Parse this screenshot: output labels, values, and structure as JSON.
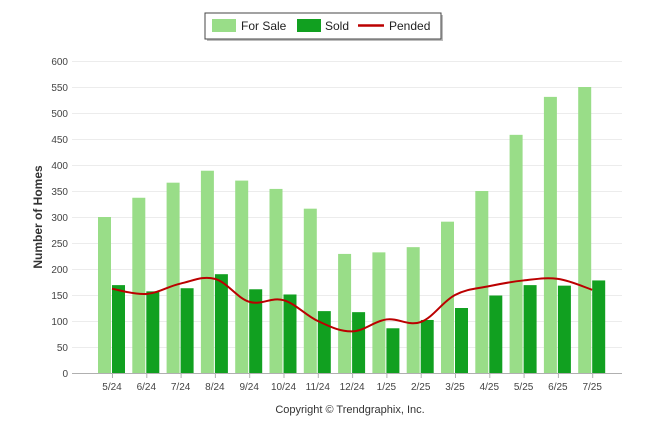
{
  "chart_data": {
    "type": "bar",
    "title": "",
    "ylabel": "Number of Homes",
    "xlabel": "",
    "ylim": [
      0,
      600
    ],
    "yticks": [
      0,
      50,
      100,
      150,
      200,
      250,
      300,
      350,
      400,
      450,
      500,
      550,
      600
    ],
    "categories": [
      "5/24",
      "6/24",
      "7/24",
      "8/24",
      "9/24",
      "10/24",
      "11/24",
      "12/24",
      "1/25",
      "2/25",
      "3/25",
      "4/25",
      "5/25",
      "6/25",
      "7/25"
    ],
    "series": [
      {
        "name": "For Sale",
        "type": "bar",
        "color": "#99dd88",
        "values": [
          300,
          337,
          366,
          389,
          370,
          354,
          316,
          229,
          232,
          242,
          291,
          350,
          458,
          531,
          550
        ]
      },
      {
        "name": "Sold",
        "type": "bar",
        "color": "#11a020",
        "values": [
          169,
          157,
          163,
          190,
          161,
          151,
          119,
          117,
          86,
          102,
          125,
          149,
          169,
          168,
          178
        ]
      },
      {
        "name": "Pended",
        "type": "line",
        "color": "#bb0000",
        "values": [
          162,
          152,
          172,
          181,
          137,
          140,
          100,
          80,
          103,
          98,
          150,
          167,
          178,
          181,
          160
        ]
      }
    ],
    "legend_position": "top-center",
    "grid": true
  },
  "credit": "Copyright © Trendgraphix, Inc."
}
